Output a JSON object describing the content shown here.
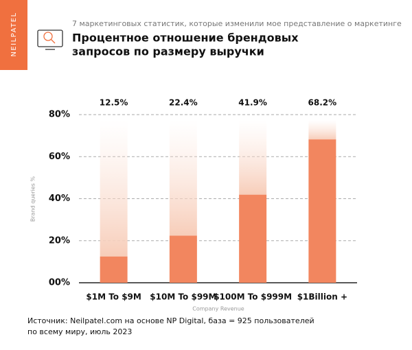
{
  "header": {
    "brand": "NEILPATEL",
    "subtitle": "7 маркетинговых статистик, которые изменили мое представление о маркетинге"
  },
  "chart_data": {
    "type": "bar",
    "title": [
      "Процентное отношение брендовых",
      "запросов по размеру выручки"
    ],
    "y_label": "Brand queries %",
    "x_label": "Company Revenue",
    "categories": [
      "$1M To $9M",
      "$10M To $99M",
      "$100M To $999M",
      "$1Billion +"
    ],
    "values": [
      12.5,
      22.4,
      41.9,
      68.2
    ],
    "value_labels": [
      "12.5%",
      "22.4%",
      "41.9%",
      "68.2%"
    ],
    "color": "#f2865f",
    "ylim": [
      0,
      80
    ],
    "yticks": [
      {
        "value": 0,
        "label": "00%"
      },
      {
        "value": 20,
        "label": "20%"
      },
      {
        "value": 40,
        "label": "40%"
      },
      {
        "value": 60,
        "label": "60%"
      },
      {
        "value": 80,
        "label": "80%"
      }
    ],
    "grid": true
  },
  "source": [
    "Источник: Neilpatel.com на основе NP Digital, база = 925 пользователей",
    "по всему миру, июль 2023"
  ]
}
